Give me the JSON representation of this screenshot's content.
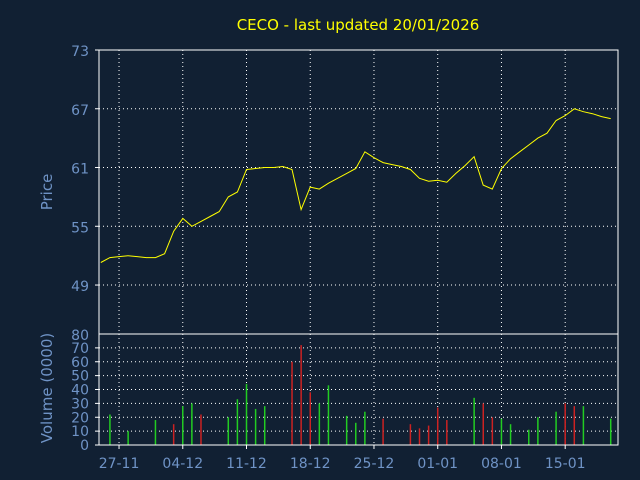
{
  "chart_data": {
    "title": "CECO - last updated 20/01/2026",
    "colors": {
      "background": "#112033",
      "price_line": "#ffff00",
      "grid": "#ffffff",
      "axis_text": "#6f93c6",
      "up_volume": "#22cc22",
      "down_volume": "#cc2222"
    },
    "price_panel": {
      "type": "line",
      "ylabel": "Price",
      "ylim": [
        44,
        73
      ],
      "yticks": [
        "73",
        "67",
        "61",
        "55",
        "49"
      ],
      "ytick_values": [
        73,
        67,
        61,
        55,
        49
      ],
      "x": [
        0,
        1,
        2,
        3,
        4,
        5,
        6,
        7,
        8,
        9,
        10,
        11,
        12,
        13,
        14,
        15,
        16,
        17,
        18,
        19,
        20,
        21,
        22,
        23,
        24,
        25,
        26,
        27,
        28,
        29,
        30,
        31,
        32,
        33,
        34,
        35,
        36,
        37,
        38,
        39,
        40,
        41,
        42,
        43,
        44,
        45,
        46,
        47,
        48,
        49,
        50,
        51,
        52,
        53,
        54,
        55,
        56
      ],
      "values": [
        51.3,
        51.8,
        51.9,
        52.0,
        51.9,
        51.8,
        51.8,
        52.2,
        54.5,
        55.8,
        55.0,
        55.5,
        56.0,
        56.5,
        58.0,
        58.5,
        60.8,
        60.9,
        61.0,
        61.0,
        61.1,
        60.8,
        56.7,
        59.0,
        58.8,
        59.4,
        59.9,
        60.4,
        60.9,
        62.6,
        62.0,
        61.5,
        61.3,
        61.1,
        60.8,
        59.9,
        59.6,
        59.7,
        59.5,
        60.4,
        61.2,
        62.1,
        59.2,
        58.8,
        60.9,
        61.9,
        62.6,
        63.3,
        64.0,
        64.5,
        65.8,
        66.3,
        67.0,
        66.7,
        66.5,
        66.2,
        66.0
      ]
    },
    "volume_panel": {
      "type": "bar",
      "ylabel": "Volume (0000)",
      "ylim": [
        0,
        80
      ],
      "ytop_label": "80",
      "yticks": [
        "70",
        "60",
        "50",
        "40",
        "30",
        "20",
        "10",
        "0"
      ],
      "ytick_values": [
        70,
        60,
        50,
        40,
        30,
        20,
        10,
        0
      ],
      "x": [
        1,
        3,
        6,
        8,
        9,
        10,
        11,
        14,
        15,
        16,
        17,
        18,
        21,
        22,
        23,
        24,
        25,
        27,
        28,
        29,
        31,
        34,
        35,
        36,
        37,
        38,
        41,
        42,
        43,
        44,
        45,
        47,
        48,
        50,
        51,
        52,
        53,
        56
      ],
      "values": [
        22,
        10,
        18,
        15,
        28,
        30,
        22,
        20,
        33,
        44,
        26,
        28,
        60,
        72,
        38,
        30,
        43,
        21,
        16,
        24,
        19,
        15,
        12,
        14,
        27,
        18,
        34,
        30,
        20,
        19,
        15,
        11,
        20,
        24,
        30,
        28,
        28,
        19
      ],
      "direction": [
        "up",
        "up",
        "up",
        "down",
        "up",
        "up",
        "down",
        "up",
        "up",
        "up",
        "up",
        "up",
        "down",
        "down",
        "down",
        "up",
        "up",
        "up",
        "up",
        "up",
        "down",
        "down",
        "down",
        "down",
        "down",
        "down",
        "up",
        "down",
        "down",
        "up",
        "up",
        "up",
        "up",
        "up",
        "down",
        "down",
        "up",
        "up"
      ]
    },
    "categories": [
      "27-11",
      "04-12",
      "11-12",
      "18-12",
      "25-12",
      "01-01",
      "08-01",
      "15-01"
    ],
    "category_positions": [
      2,
      9,
      16,
      23,
      30,
      37,
      44,
      51
    ],
    "x_range": [
      -0.2,
      56.8
    ],
    "grid": true
  }
}
